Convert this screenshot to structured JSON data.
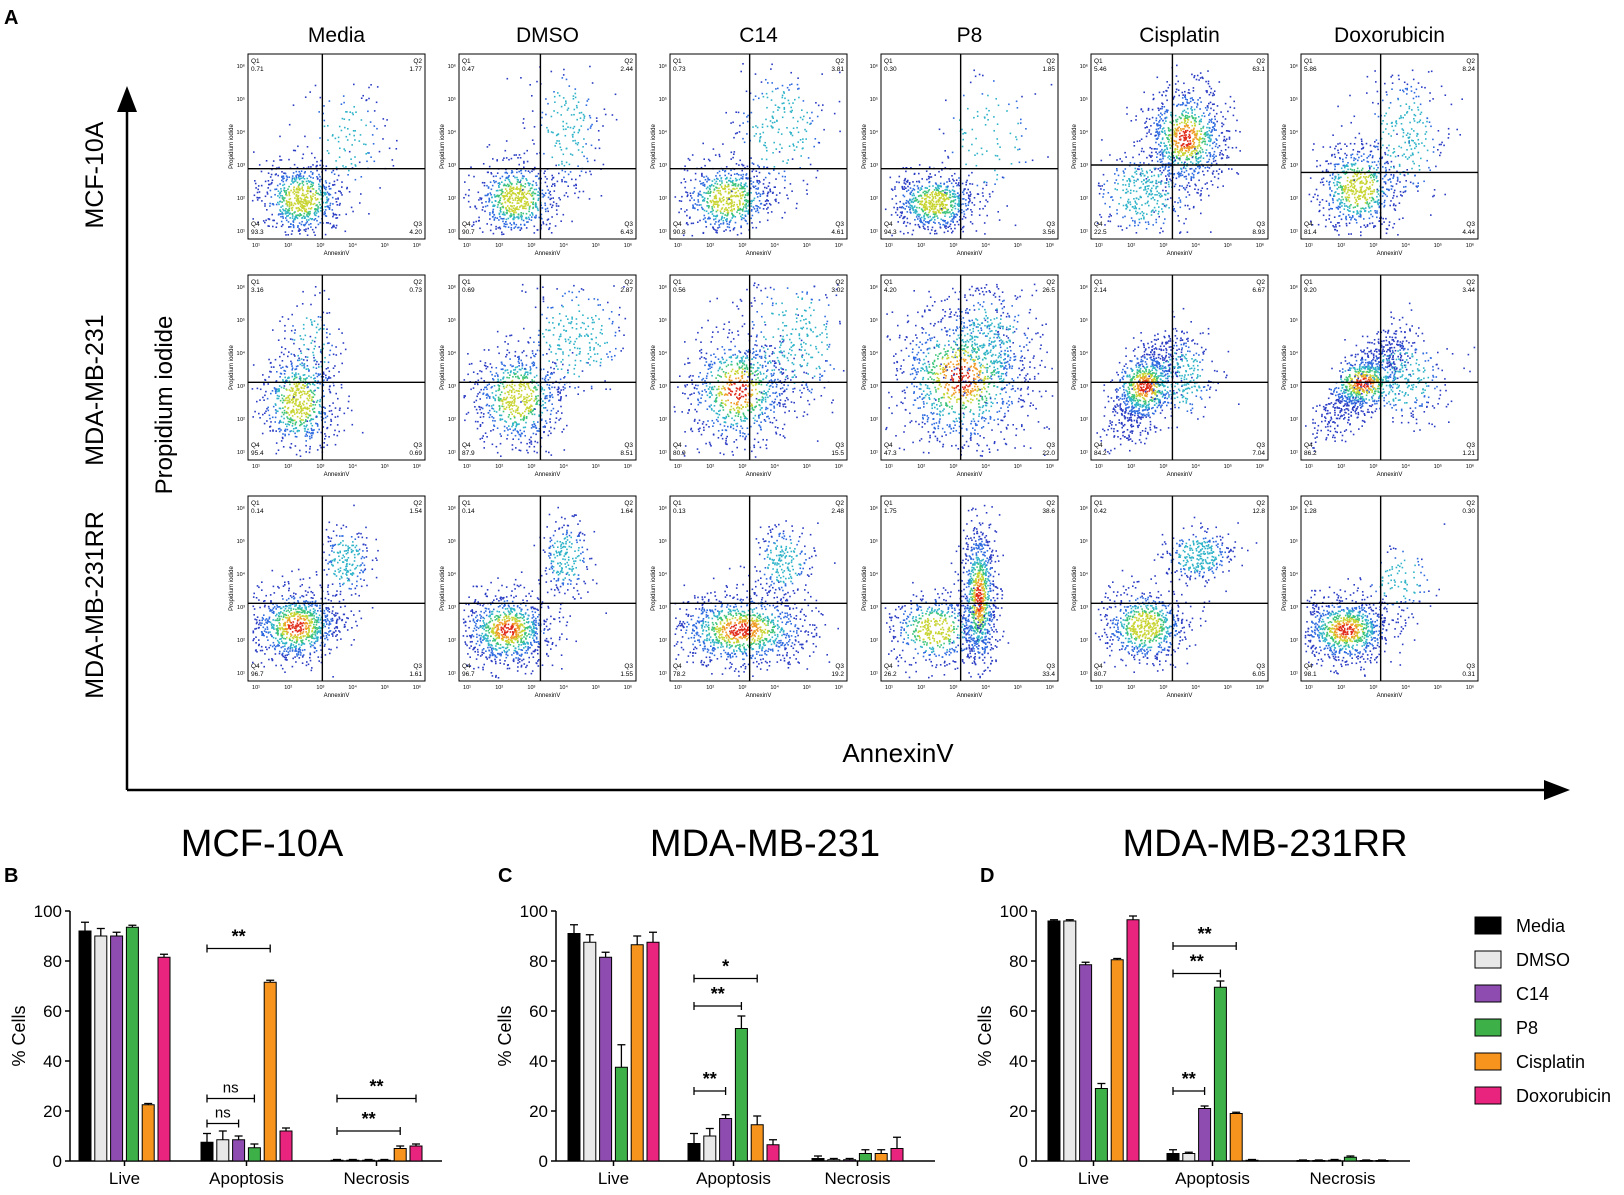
{
  "panel_letters": {
    "a": "A",
    "b": "B",
    "c": "C",
    "d": "D"
  },
  "flow": {
    "treatments": [
      "Media",
      "DMSO",
      "C14",
      "P8",
      "Cisplatin",
      "Doxorubicin"
    ],
    "cell_lines": [
      "MCF-10A",
      "MDA-MB-231",
      "MDA-MB-231RR"
    ],
    "y_axis_label": "Propidium iodide",
    "x_axis_label": "AnnexinV",
    "subplot_xlabel": "AnnexinV",
    "subplot_ylabel": "Propidium iodide",
    "tick_labels": [
      "10¹",
      "10²",
      "10³",
      "10⁴",
      "10⁵",
      "10⁶"
    ],
    "quadrant_names": {
      "q1": "Q1",
      "q2": "Q2",
      "q3": "Q3",
      "q4": "Q4"
    },
    "quadrants": [
      [
        {
          "q1": "0.71",
          "q2": "1.77",
          "q3": "4.20",
          "q4": "93.3"
        },
        {
          "q1": "0.47",
          "q2": "2.44",
          "q3": "6.43",
          "q4": "90.7"
        },
        {
          "q1": "0.73",
          "q2": "3.81",
          "q3": "4.61",
          "q4": "90.8"
        },
        {
          "q1": "0.30",
          "q2": "1.85",
          "q3": "3.56",
          "q4": "94.3"
        },
        {
          "q1": "5.46",
          "q2": "63.1",
          "q3": "8.93",
          "q4": "22.5"
        },
        {
          "q1": "5.86",
          "q2": "8.24",
          "q3": "4.44",
          "q4": "81.4"
        }
      ],
      [
        {
          "q1": "3.16",
          "q2": "0.73",
          "q3": "0.69",
          "q4": "95.4"
        },
        {
          "q1": "0.69",
          "q2": "2.87",
          "q3": "8.51",
          "q4": "87.9"
        },
        {
          "q1": "0.56",
          "q2": "3.02",
          "q3": "15.5",
          "q4": "80.9"
        },
        {
          "q1": "4.20",
          "q2": "26.5",
          "q3": "22.0",
          "q4": "47.3"
        },
        {
          "q1": "2.14",
          "q2": "6.67",
          "q3": "7.04",
          "q4": "84.2"
        },
        {
          "q1": "9.20",
          "q2": "3.44",
          "q3": "1.21",
          "q4": "86.2"
        }
      ],
      [
        {
          "q1": "0.14",
          "q2": "1.54",
          "q3": "1.61",
          "q4": "96.7"
        },
        {
          "q1": "0.14",
          "q2": "1.64",
          "q3": "1.55",
          "q4": "96.7"
        },
        {
          "q1": "0.13",
          "q2": "2.48",
          "q3": "19.2",
          "q4": "78.2"
        },
        {
          "q1": "1.75",
          "q2": "38.6",
          "q3": "33.4",
          "q4": "26.2"
        },
        {
          "q1": "0.42",
          "q2": "12.8",
          "q3": "6.05",
          "q4": "80.7"
        },
        {
          "q1": "1.28",
          "q2": "0.30",
          "q3": "0.31",
          "q4": "98.1"
        }
      ]
    ]
  },
  "chart_data": [
    {
      "type": "bar",
      "title": "MCF-10A",
      "panel": "B",
      "categories": [
        "Live",
        "Apoptosis",
        "Necrosis"
      ],
      "ylabel": "% Cells",
      "ylim": [
        0,
        100
      ],
      "yticks": [
        "0",
        "20",
        "40",
        "60",
        "80",
        "100"
      ],
      "series": [
        {
          "name": "Media",
          "values": [
            92,
            7.5,
            0.3
          ],
          "errors": [
            3.5,
            3.5,
            0.3
          ]
        },
        {
          "name": "DMSO",
          "values": [
            90,
            8.5,
            0.3
          ],
          "errors": [
            3,
            3.5,
            0.3
          ]
        },
        {
          "name": "C14",
          "values": [
            90,
            8.5,
            0.3
          ],
          "errors": [
            1.5,
            1.5,
            0.3
          ]
        },
        {
          "name": "P8",
          "values": [
            93.5,
            5.3,
            0.3
          ],
          "errors": [
            0.8,
            1.5,
            0.3
          ]
        },
        {
          "name": "Cisplatin",
          "values": [
            22.5,
            71.5,
            5
          ],
          "errors": [
            0.5,
            0.8,
            1
          ]
        },
        {
          "name": "Doxorubicin",
          "values": [
            81.5,
            12,
            6
          ],
          "errors": [
            1.2,
            1.2,
            0.8
          ]
        }
      ],
      "annotations": [
        {
          "label": "ns",
          "category": "Apoptosis",
          "from": "Media",
          "to": "C14",
          "y": 15
        },
        {
          "label": "ns",
          "category": "Apoptosis",
          "from": "Media",
          "to": "P8",
          "y": 25
        },
        {
          "label": "**",
          "category": "Apoptosis",
          "from": "Media",
          "to": "Cisplatin",
          "y": 85
        },
        {
          "label": "**",
          "category": "Necrosis",
          "from": "Media",
          "to": "Cisplatin",
          "y": 12
        },
        {
          "label": "**",
          "category": "Necrosis",
          "from": "Media",
          "to": "Doxorubicin",
          "y": 25
        }
      ]
    },
    {
      "type": "bar",
      "title": "MDA-MB-231",
      "panel": "C",
      "categories": [
        "Live",
        "Apoptosis",
        "Necrosis"
      ],
      "ylabel": "% Cells",
      "ylim": [
        0,
        100
      ],
      "yticks": [
        "0",
        "20",
        "40",
        "60",
        "80",
        "100"
      ],
      "series": [
        {
          "name": "Media",
          "values": [
            91,
            7,
            1
          ],
          "errors": [
            3.5,
            4,
            1
          ]
        },
        {
          "name": "DMSO",
          "values": [
            87.5,
            10,
            0.5
          ],
          "errors": [
            3,
            3,
            0.5
          ]
        },
        {
          "name": "C14",
          "values": [
            81.5,
            17,
            0.5
          ],
          "errors": [
            2,
            1.5,
            0.5
          ]
        },
        {
          "name": "P8",
          "values": [
            37.5,
            53,
            3
          ],
          "errors": [
            9,
            5,
            1.5
          ]
        },
        {
          "name": "Cisplatin",
          "values": [
            86.5,
            14.5,
            3
          ],
          "errors": [
            3.5,
            3.5,
            1.5
          ]
        },
        {
          "name": "Doxorubicin",
          "values": [
            87.5,
            6.5,
            5
          ],
          "errors": [
            4,
            2,
            4.5
          ]
        }
      ],
      "annotations": [
        {
          "label": "**",
          "category": "Apoptosis",
          "from": "Media",
          "to": "C14",
          "y": 28
        },
        {
          "label": "**",
          "category": "Apoptosis",
          "from": "Media",
          "to": "P8",
          "y": 62
        },
        {
          "label": "*",
          "category": "Apoptosis",
          "from": "Media",
          "to": "Cisplatin",
          "y": 73
        }
      ]
    },
    {
      "type": "bar",
      "title": "MDA-MB-231RR",
      "panel": "D",
      "categories": [
        "Live",
        "Apoptosis",
        "Necrosis"
      ],
      "ylabel": "% Cells",
      "ylim": [
        0,
        100
      ],
      "yticks": [
        "0",
        "20",
        "40",
        "60",
        "80",
        "100"
      ],
      "series": [
        {
          "name": "Media",
          "values": [
            96,
            3,
            0.2
          ],
          "errors": [
            0.5,
            1.5,
            0.2
          ]
        },
        {
          "name": "DMSO",
          "values": [
            96,
            3,
            0.2
          ],
          "errors": [
            0.5,
            0.5,
            0.2
          ]
        },
        {
          "name": "C14",
          "values": [
            78.5,
            21,
            0.3
          ],
          "errors": [
            1,
            1,
            0.3
          ]
        },
        {
          "name": "P8",
          "values": [
            29,
            69.5,
            1.5
          ],
          "errors": [
            2,
            2.5,
            0.5
          ]
        },
        {
          "name": "Cisplatin",
          "values": [
            80.5,
            19,
            0.2
          ],
          "errors": [
            0.5,
            0.5,
            0.2
          ]
        },
        {
          "name": "Doxorubicin",
          "values": [
            96.5,
            0.3,
            0.2
          ],
          "errors": [
            1.5,
            0.3,
            0.2
          ]
        }
      ],
      "annotations": [
        {
          "label": "**",
          "category": "Apoptosis",
          "from": "Media",
          "to": "C14",
          "y": 28
        },
        {
          "label": "**",
          "category": "Apoptosis",
          "from": "Media",
          "to": "P8",
          "y": 75
        },
        {
          "label": "**",
          "category": "Apoptosis",
          "from": "Media",
          "to": "Cisplatin",
          "y": 86
        }
      ]
    }
  ],
  "legend": {
    "items": [
      {
        "name": "Media",
        "color": "#000000"
      },
      {
        "name": "DMSO",
        "color": "#e8e8e8"
      },
      {
        "name": "C14",
        "color": "#8e4bb0"
      },
      {
        "name": "P8",
        "color": "#3db048"
      },
      {
        "name": "Cisplatin",
        "color": "#f7941d"
      },
      {
        "name": "Doxorubicin",
        "color": "#e8247f"
      }
    ]
  }
}
